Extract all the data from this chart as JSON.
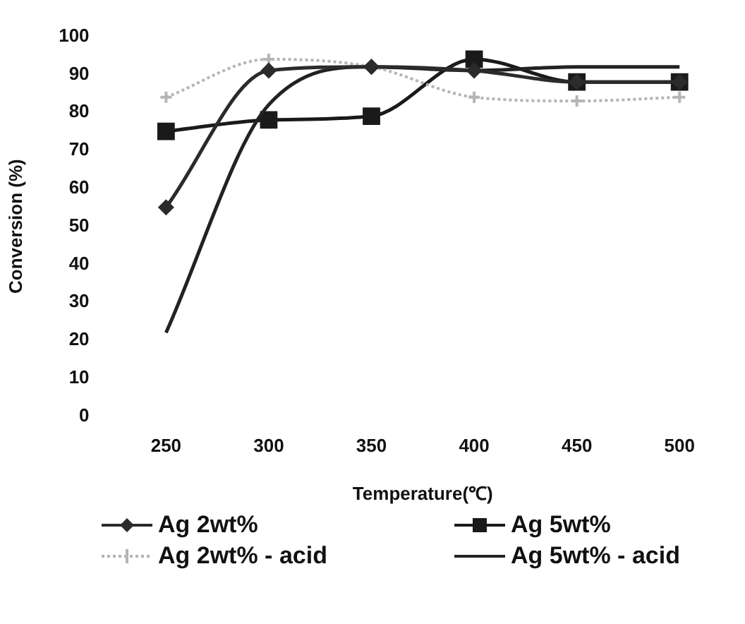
{
  "chart_data": {
    "type": "line",
    "xlabel": "Temperature(℃)",
    "ylabel": "Conversion (%)",
    "categories": [
      "250",
      "300",
      "350",
      "400",
      "450",
      "500"
    ],
    "ylim": [
      0,
      100
    ],
    "yticks": [
      0,
      10,
      20,
      30,
      40,
      50,
      60,
      70,
      80,
      90,
      100
    ],
    "grid": false,
    "legend": "bottom",
    "series": [
      {
        "name": "Ag 2wt%",
        "color": "#2b2b2b",
        "marker": "diamond",
        "line_style": "solid",
        "values": [
          55,
          91,
          92,
          91,
          88,
          88
        ]
      },
      {
        "name": "Ag 5wt%",
        "color": "#1a1a1a",
        "marker": "square",
        "line_style": "solid",
        "values": [
          75,
          78,
          79,
          94,
          88,
          88
        ]
      },
      {
        "name": "Ag 2wt% - acid",
        "color": "#b5b5b5",
        "marker": "cross",
        "line_style": "dotted",
        "values": [
          84,
          94,
          92,
          84,
          83,
          84
        ]
      },
      {
        "name": "Ag 5wt% - acid",
        "color": "#222222",
        "marker": "none",
        "line_style": "solid",
        "values": [
          22,
          82,
          92,
          91,
          92,
          92
        ]
      }
    ]
  }
}
